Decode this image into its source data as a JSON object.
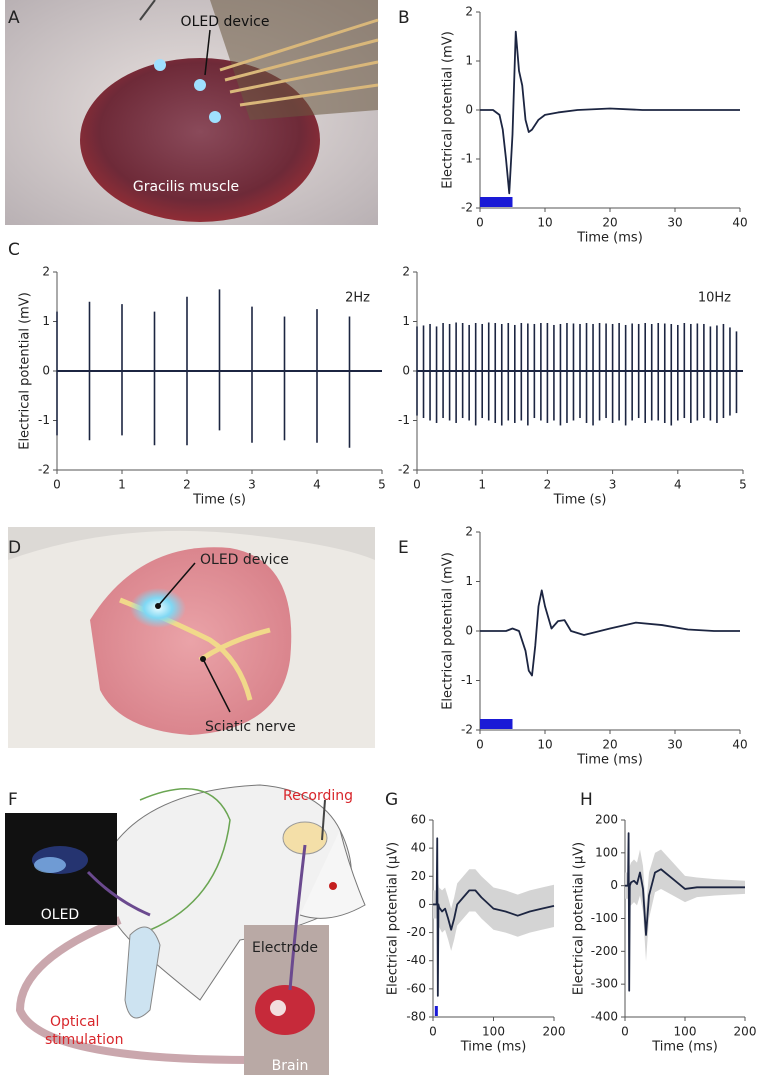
{
  "figure": {
    "panels": [
      "A",
      "B",
      "C",
      "D",
      "E",
      "F",
      "G",
      "H"
    ],
    "photo_a": {
      "device": "OLED device",
      "muscle": "Gracilis muscle"
    },
    "photo_d": {
      "device": "OLED device",
      "nerve": "Sciatic nerve"
    },
    "illustration_f": {
      "recording": "Recording",
      "oled": "OLED",
      "stimulation": [
        "Optical",
        "stimulation"
      ],
      "electrode": "Electrode",
      "brain": "Brain"
    }
  },
  "chart_data": [
    {
      "type": "line",
      "x": [
        0,
        2,
        3,
        3.5,
        4,
        4.5,
        5,
        5.5,
        6,
        6.5,
        7,
        7.5,
        8,
        9,
        10,
        12,
        15,
        20,
        25,
        30,
        35,
        40
      ],
      "values": [
        0,
        0,
        -0.1,
        -0.4,
        -1.0,
        -1.7,
        -0.5,
        1.6,
        0.8,
        0.5,
        -0.2,
        -0.45,
        -0.4,
        -0.2,
        -0.1,
        -0.05,
        0,
        0.03,
        0,
        0,
        0,
        0
      ],
      "color": "#1c2541",
      "xlim": [
        0,
        40
      ],
      "ylim": [
        -2,
        2
      ],
      "xticks": [
        0,
        10,
        20,
        30,
        40
      ],
      "yticks": [
        -2,
        -1,
        0,
        1,
        2
      ],
      "xlabel": "Time (ms)",
      "ylabel": "Electrical potential (mV)",
      "stimulus": [
        0,
        5
      ],
      "stimulus_color": "#1a1ad6"
    },
    {
      "type": "spike",
      "x": [
        0,
        0.5,
        1,
        1.5,
        2,
        2.5,
        3,
        3.5,
        4,
        4.5
      ],
      "peaks": [
        1.2,
        1.4,
        1.35,
        1.2,
        1.5,
        1.65,
        1.3,
        1.1,
        1.25,
        1.1
      ],
      "troughs": [
        -1.3,
        -1.4,
        -1.3,
        -1.5,
        -1.5,
        -1.2,
        -1.45,
        -1.4,
        -1.45,
        -1.55
      ],
      "color": "#1c2541",
      "xlim": [
        0,
        5
      ],
      "ylim": [
        -2,
        2
      ],
      "xticks": [
        0,
        1,
        2,
        3,
        4,
        5
      ],
      "yticks": [
        -2,
        -1,
        0,
        1,
        2
      ],
      "xlabel": "Time (s)",
      "ylabel": "Electrical potential (mV)",
      "annotation": "2Hz"
    },
    {
      "type": "spike",
      "x": [
        0,
        0.1,
        0.2,
        0.3,
        0.4,
        0.5,
        0.6,
        0.7,
        0.8,
        0.9,
        1,
        1.1,
        1.2,
        1.3,
        1.4,
        1.5,
        1.6,
        1.7,
        1.8,
        1.9,
        2,
        2.1,
        2.2,
        2.3,
        2.4,
        2.5,
        2.6,
        2.7,
        2.8,
        2.9,
        3,
        3.1,
        3.2,
        3.3,
        3.4,
        3.5,
        3.6,
        3.7,
        3.8,
        3.9,
        4,
        4.1,
        4.2,
        4.3,
        4.4,
        4.5,
        4.6,
        4.7,
        4.8,
        4.9
      ],
      "peaks": [
        0.9,
        0.92,
        0.95,
        0.9,
        0.97,
        0.95,
        0.98,
        0.97,
        0.93,
        0.97,
        0.95,
        0.98,
        0.97,
        0.95,
        0.97,
        0.93,
        0.97,
        0.96,
        0.95,
        0.97,
        0.97,
        0.93,
        0.95,
        0.97,
        0.96,
        0.95,
        0.97,
        0.95,
        0.97,
        0.96,
        0.95,
        0.97,
        0.93,
        0.96,
        0.95,
        0.97,
        0.95,
        0.97,
        0.96,
        0.95,
        0.93,
        0.97,
        0.95,
        0.96,
        0.95,
        0.9,
        0.92,
        0.95,
        0.88,
        0.8
      ],
      "troughs": [
        -0.9,
        -0.95,
        -1.0,
        -1.05,
        -0.95,
        -1.0,
        -1.05,
        -0.95,
        -1.0,
        -1.1,
        -0.95,
        -1.0,
        -1.05,
        -1.1,
        -1.0,
        -1.05,
        -1.0,
        -1.1,
        -0.95,
        -1.0,
        -1.05,
        -1.0,
        -1.1,
        -1.05,
        -1.0,
        -0.95,
        -1.05,
        -1.1,
        -1.0,
        -0.95,
        -1.05,
        -1.0,
        -1.1,
        -1.0,
        -0.95,
        -1.05,
        -1.0,
        -1.0,
        -1.05,
        -1.1,
        -1.0,
        -0.95,
        -1.05,
        -1.0,
        -0.95,
        -1.0,
        -1.05,
        -0.95,
        -0.9,
        -0.85
      ],
      "color": "#1c2541",
      "xlim": [
        0,
        5
      ],
      "ylim": [
        -2,
        2
      ],
      "xticks": [
        0,
        1,
        2,
        3,
        4,
        5
      ],
      "yticks": [
        -2,
        -1,
        0,
        1,
        2
      ],
      "xlabel": "Time (s)",
      "annotation": "10Hz"
    },
    {
      "type": "line",
      "x": [
        0,
        4,
        5,
        6,
        7,
        7.5,
        8,
        8.5,
        9,
        9.5,
        10,
        11,
        12,
        13,
        14,
        16,
        20,
        24,
        28,
        32,
        36,
        40
      ],
      "values": [
        0,
        0,
        0.05,
        0,
        -0.4,
        -0.8,
        -0.9,
        -0.3,
        0.5,
        0.82,
        0.5,
        0.05,
        0.2,
        0.22,
        0,
        -0.08,
        0.05,
        0.17,
        0.12,
        0.03,
        0,
        0
      ],
      "color": "#1c2541",
      "xlim": [
        0,
        40
      ],
      "ylim": [
        -2,
        2
      ],
      "xticks": [
        0,
        10,
        20,
        30,
        40
      ],
      "yticks": [
        -2,
        -1,
        0,
        1,
        2
      ],
      "xlabel": "Time (ms)",
      "ylabel": "Electrical potential (mV)",
      "stimulus": [
        0,
        5
      ],
      "stimulus_color": "#1a1ad6"
    },
    {
      "type": "line",
      "x": [
        0,
        6,
        7,
        8,
        9,
        10,
        15,
        20,
        25,
        30,
        35,
        40,
        50,
        60,
        70,
        80,
        100,
        120,
        140,
        160,
        180,
        200
      ],
      "values": [
        0,
        0,
        47,
        -65,
        0,
        -2,
        -5,
        -3,
        -10,
        -18,
        -10,
        0,
        5,
        10,
        10,
        5,
        -3,
        -5,
        -8,
        -5,
        -3,
        -1
      ],
      "upper": [
        10,
        10,
        50,
        -50,
        15,
        12,
        10,
        12,
        5,
        -3,
        5,
        15,
        20,
        25,
        25,
        20,
        12,
        10,
        7,
        10,
        12,
        14
      ],
      "lower": [
        -10,
        -10,
        40,
        -75,
        -15,
        -16,
        -20,
        -18,
        -25,
        -33,
        -25,
        -15,
        -10,
        -5,
        -5,
        -10,
        -18,
        -20,
        -23,
        -20,
        -18,
        -16
      ],
      "color": "#1c2541",
      "band_color": "#d4d4d4",
      "xlim": [
        0,
        200
      ],
      "ylim": [
        -80,
        60
      ],
      "xticks": [
        0,
        100,
        200
      ],
      "yticks": [
        -80,
        -60,
        -40,
        -20,
        0,
        20,
        40,
        60
      ],
      "xlabel": "Time (ms)",
      "ylabel": "Electrical potential (μV)",
      "stimulus": [
        3,
        8
      ],
      "stimulus_color": "#1a1ad6"
    },
    {
      "type": "line",
      "x": [
        0,
        5,
        6,
        7,
        8,
        10,
        15,
        20,
        25,
        30,
        35,
        40,
        50,
        60,
        80,
        100,
        120,
        150,
        200
      ],
      "values": [
        0,
        0,
        160,
        -320,
        0,
        10,
        15,
        5,
        40,
        -10,
        -150,
        -30,
        40,
        50,
        20,
        -10,
        -5,
        -5,
        -5
      ],
      "upper": [
        40,
        40,
        170,
        -280,
        60,
        70,
        80,
        70,
        110,
        60,
        -70,
        40,
        100,
        110,
        70,
        30,
        25,
        20,
        15
      ],
      "lower": [
        -40,
        -40,
        150,
        -340,
        -60,
        -60,
        -50,
        -60,
        -30,
        -80,
        -230,
        -100,
        -20,
        -10,
        -30,
        -50,
        -35,
        -30,
        -25
      ],
      "color": "#1c2541",
      "band_color": "#d4d4d4",
      "xlim": [
        0,
        200
      ],
      "ylim": [
        -400,
        200
      ],
      "xticks": [
        0,
        100,
        200
      ],
      "yticks": [
        -400,
        -300,
        -200,
        -100,
        0,
        100,
        200
      ],
      "xlabel": "Time (ms)",
      "ylabel": "Electrical potential (μV)"
    }
  ]
}
